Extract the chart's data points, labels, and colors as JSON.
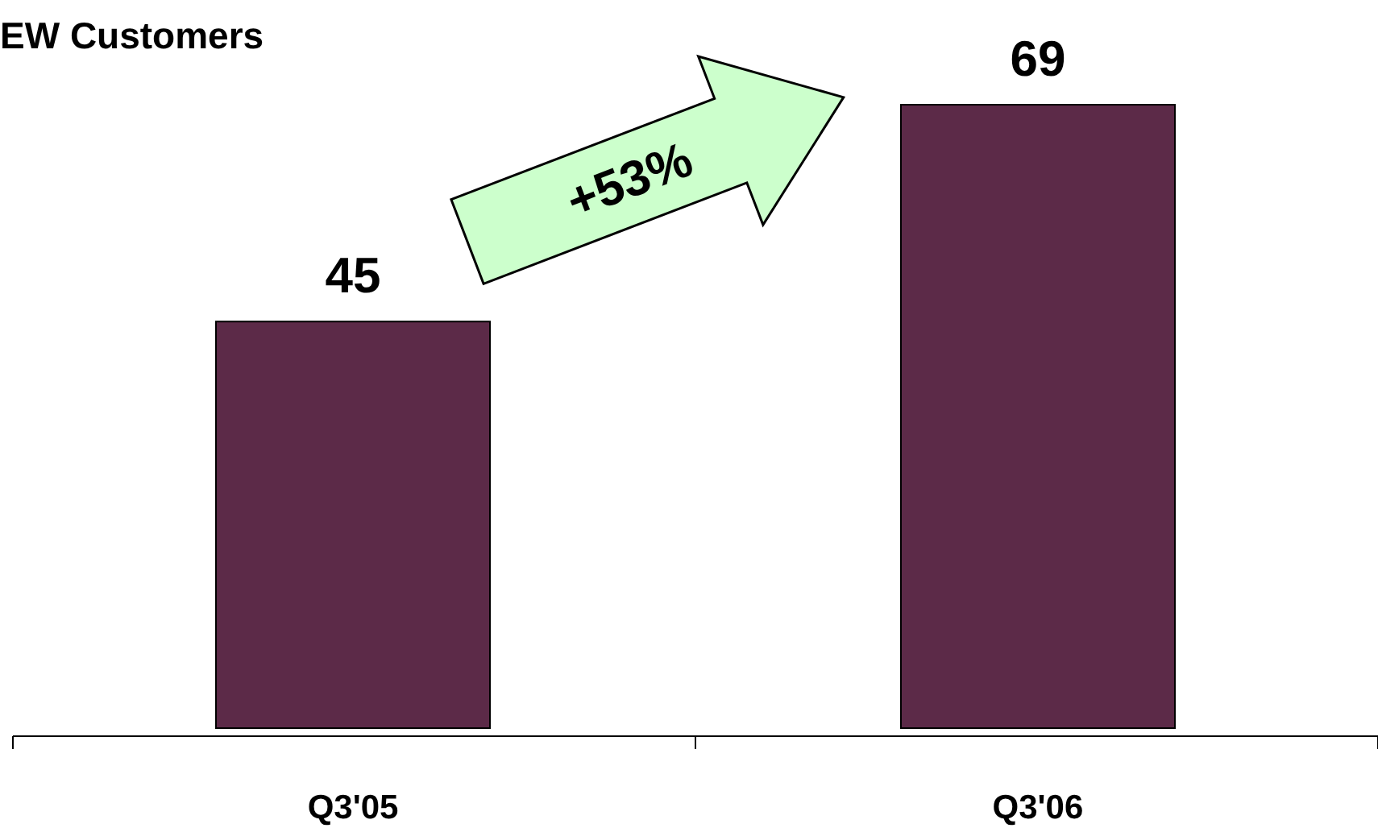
{
  "chart_data": {
    "type": "bar",
    "title": "EW Customers",
    "categories": [
      "Q3'05",
      "Q3'06"
    ],
    "values": [
      45,
      69
    ],
    "color": "#5c2a48",
    "data_labels": true,
    "annotations": [
      "+53%"
    ]
  }
}
